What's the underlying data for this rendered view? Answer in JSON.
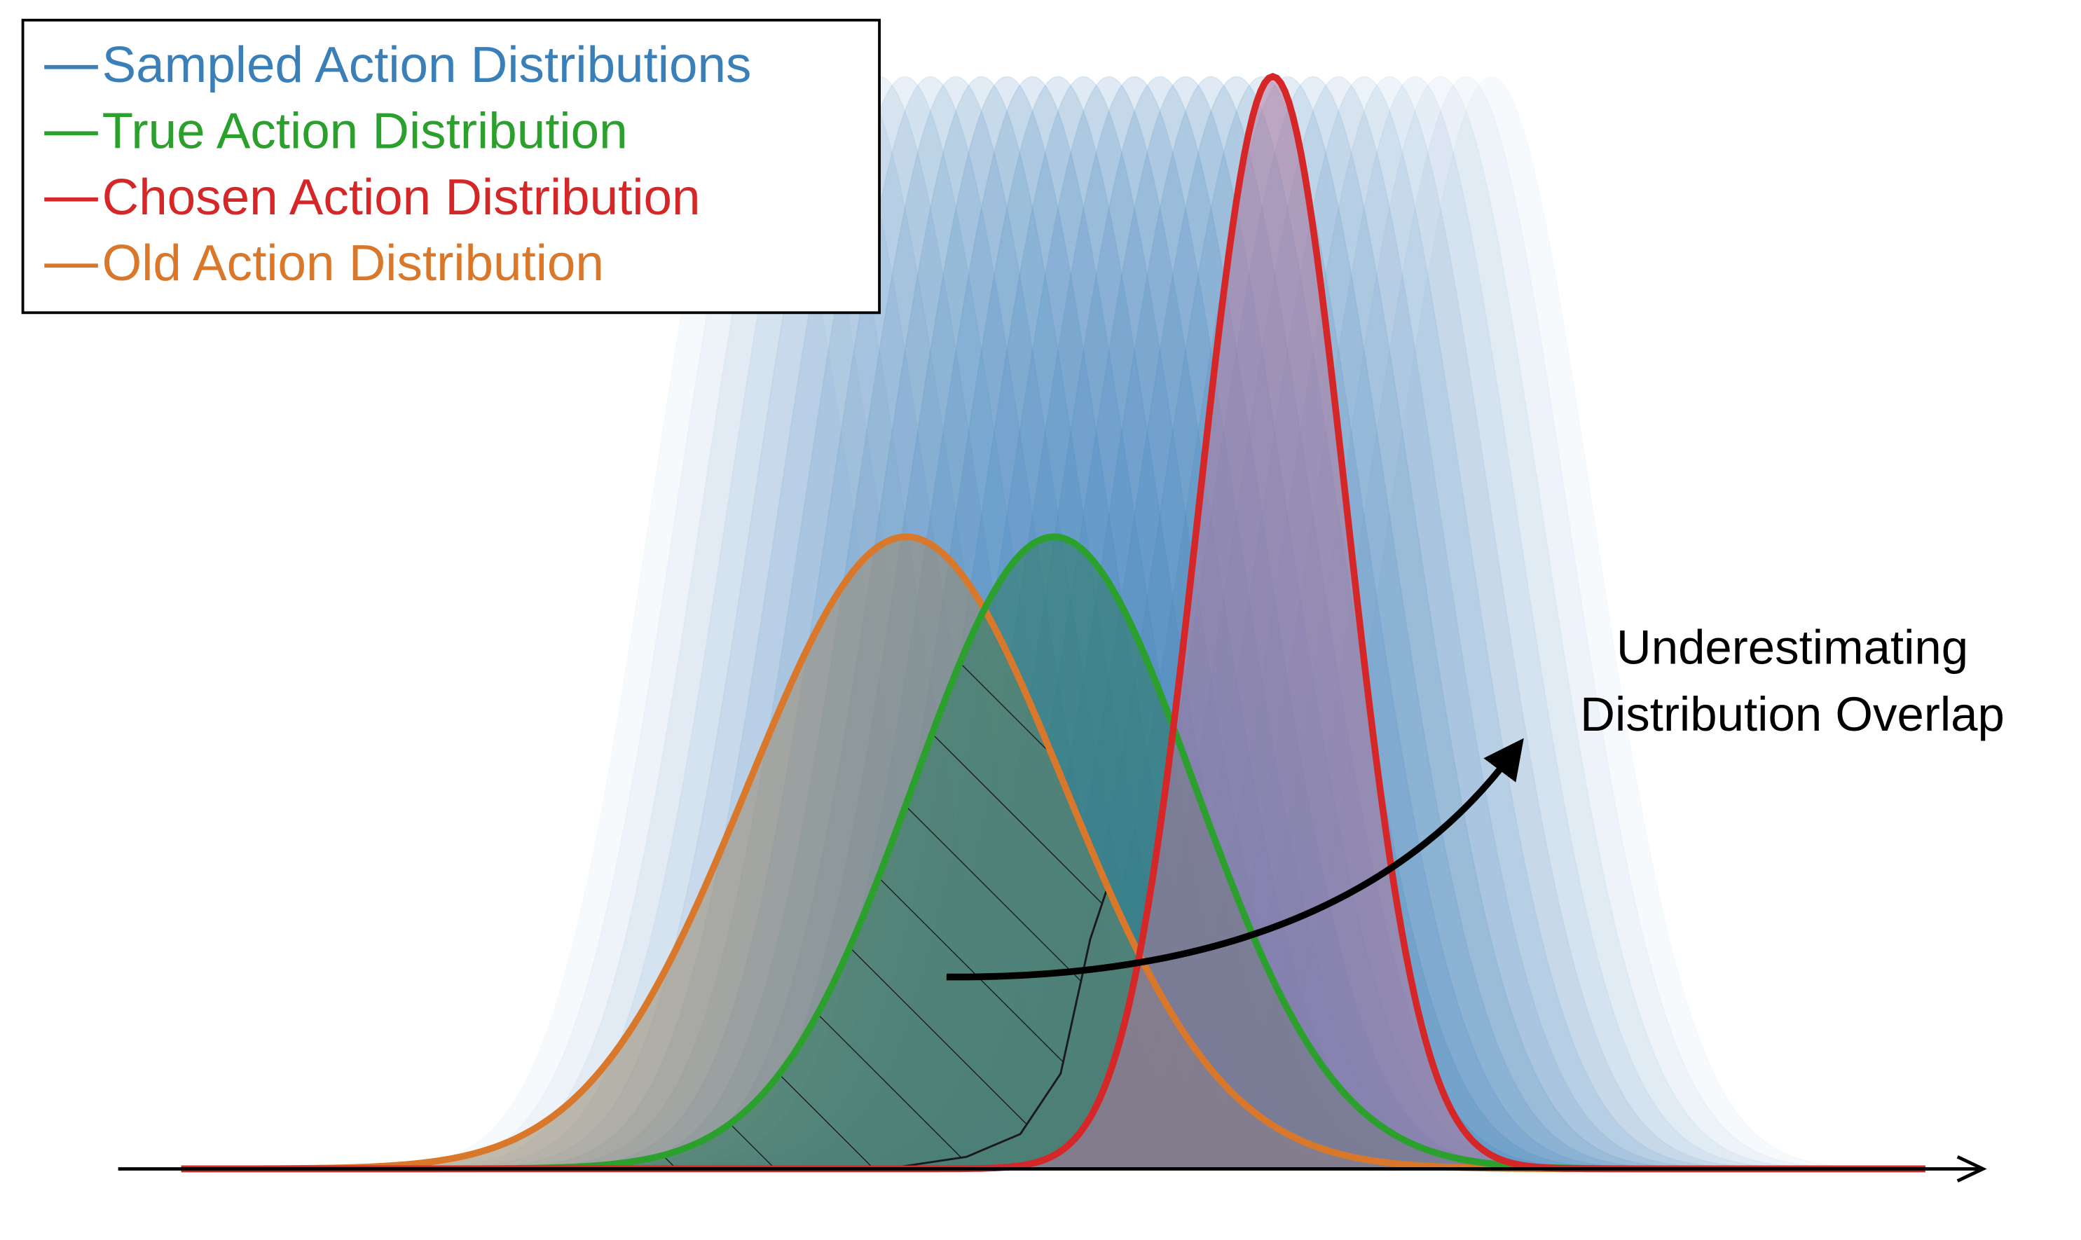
{
  "legend": {
    "items": [
      {
        "label": "Sampled Action Distributions",
        "color": "#3a7fb8"
      },
      {
        "label": "True Action Distribution",
        "color": "#2ca02c"
      },
      {
        "label": "Chosen Action Distribution",
        "color": "#d62728"
      },
      {
        "label": "Old Action Distribution",
        "color": "#d9782a"
      }
    ]
  },
  "annotation": {
    "lines": [
      "Underestimating",
      "Distribution Overlap"
    ]
  }
}
